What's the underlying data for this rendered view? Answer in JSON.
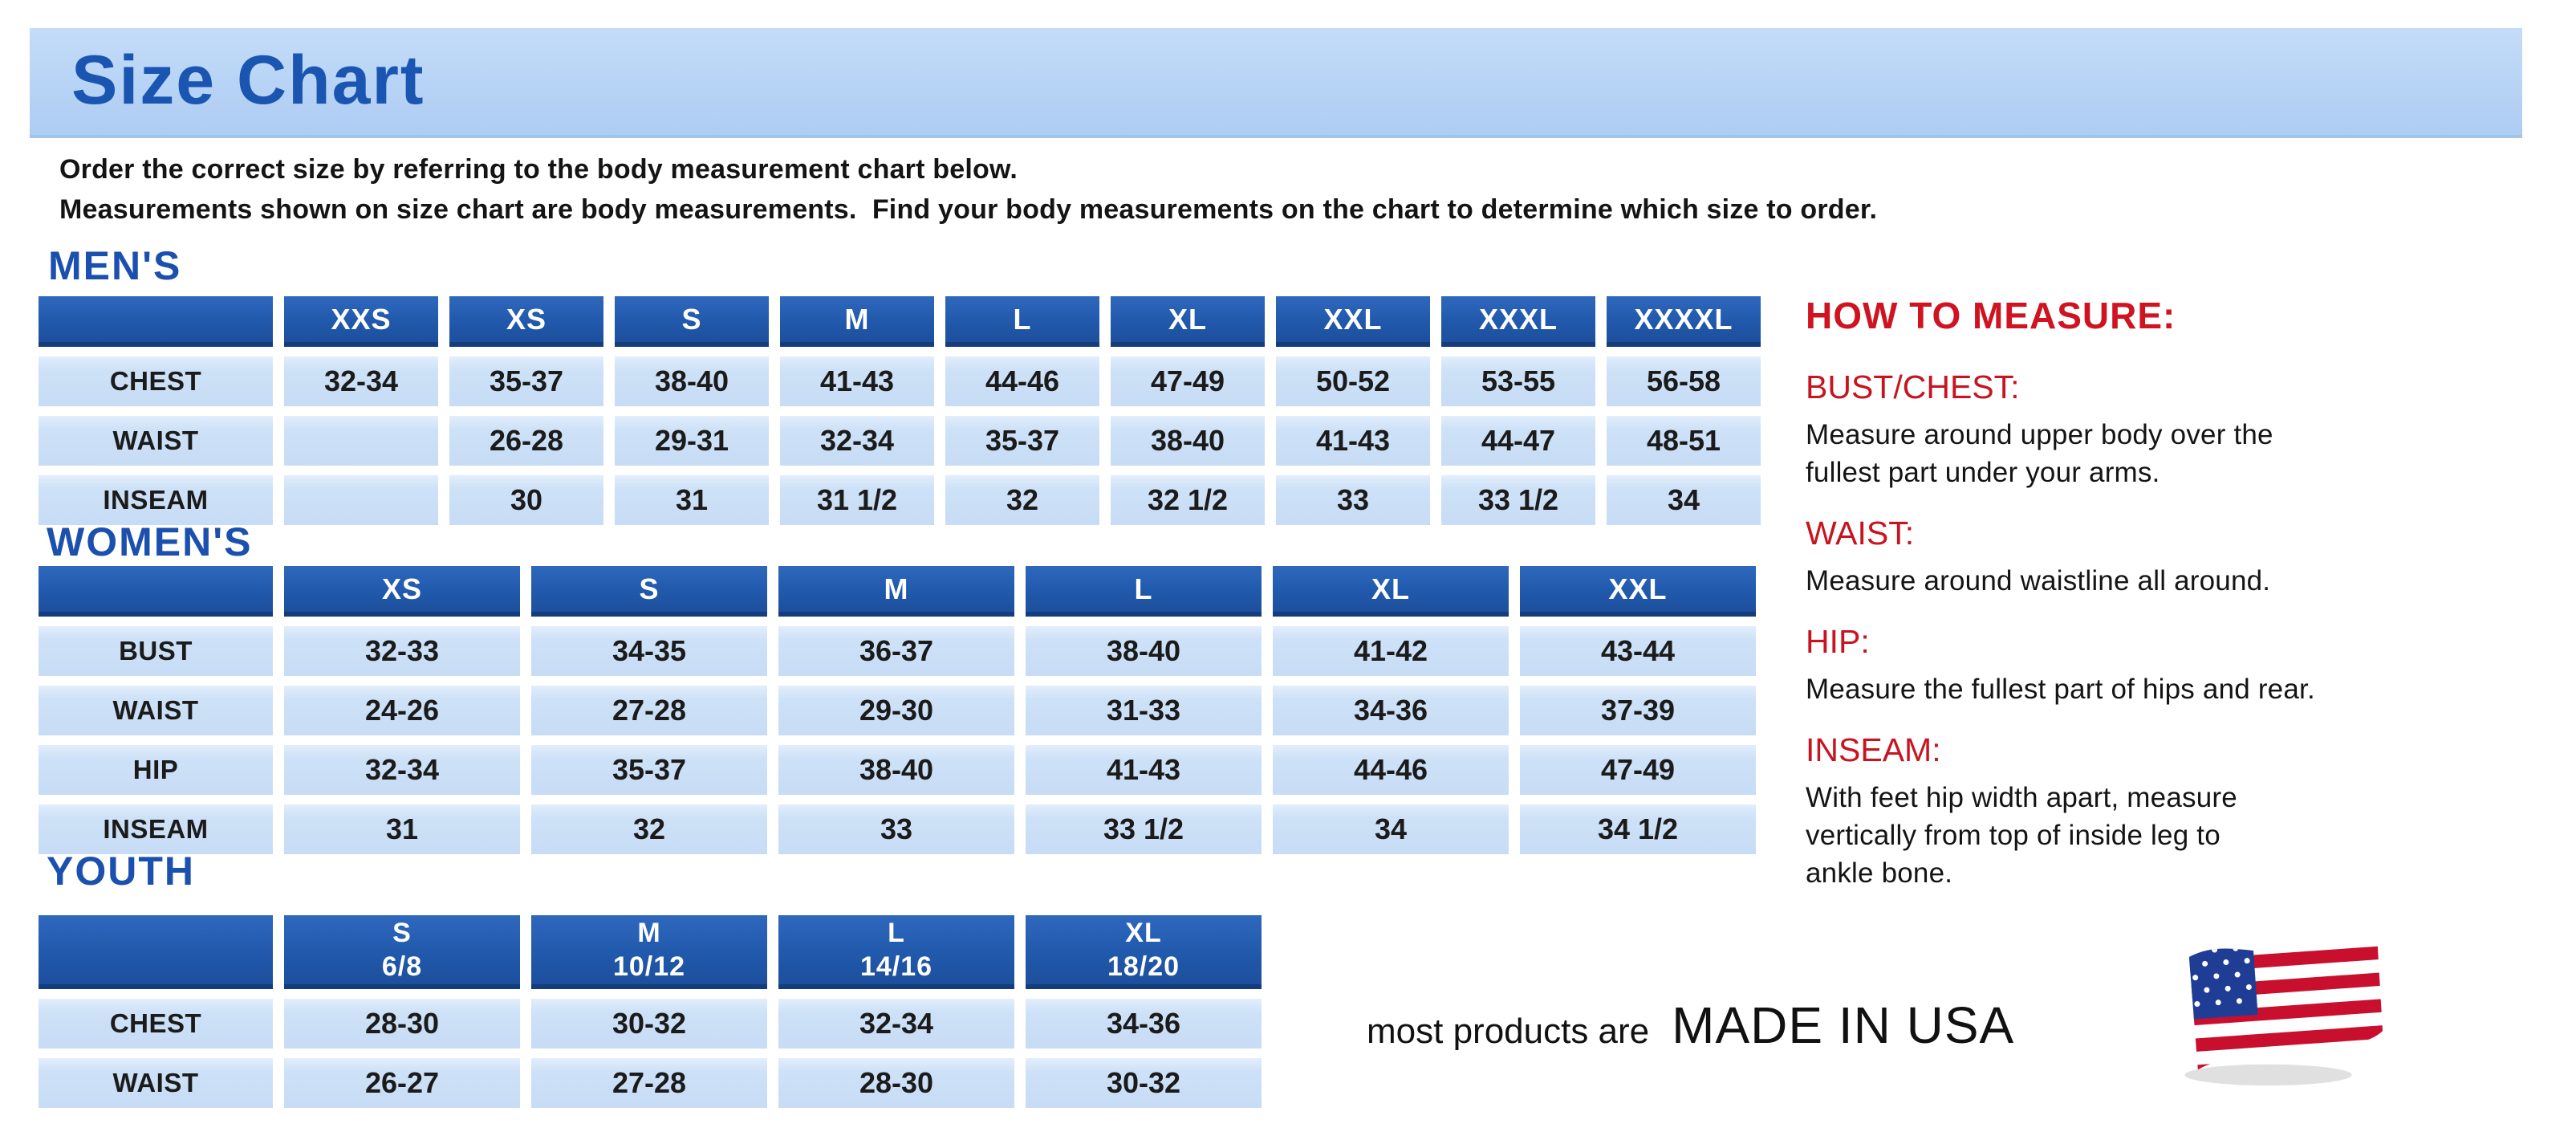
{
  "title": "Size Chart",
  "intro": {
    "line1": "Order the correct size by referring to the body measurement chart below.",
    "line2": "Measurements shown on size chart are body measurements.  Find your body measurements on the chart to determine which size to order."
  },
  "colors": {
    "banner_blue": "#b7d3f5",
    "heading_blue": "#1c50ae",
    "table_header_blue": "#2159ac",
    "table_cell_blue": "#c7dcf5",
    "accent_red": "#cf1320",
    "text_black": "#141414"
  },
  "tables": {
    "mens": {
      "heading": "MEN'S",
      "columns": [
        "XXS",
        "XS",
        "S",
        "M",
        "L",
        "XL",
        "XXL",
        "XXXL",
        "XXXXL"
      ],
      "rows": [
        {
          "label": "CHEST",
          "values": [
            "32-34",
            "35-37",
            "38-40",
            "41-43",
            "44-46",
            "47-49",
            "50-52",
            "53-55",
            "56-58"
          ]
        },
        {
          "label": "WAIST",
          "values": [
            "",
            "26-28",
            "29-31",
            "32-34",
            "35-37",
            "38-40",
            "41-43",
            "44-47",
            "48-51"
          ]
        },
        {
          "label": "INSEAM",
          "values": [
            "",
            "30",
            "31",
            "31 1/2",
            "32",
            "32 1/2",
            "33",
            "33 1/2",
            "34"
          ]
        }
      ]
    },
    "womens": {
      "heading": "WOMEN'S",
      "columns": [
        "XS",
        "S",
        "M",
        "L",
        "XL",
        "XXL"
      ],
      "rows": [
        {
          "label": "BUST",
          "values": [
            "32-33",
            "34-35",
            "36-37",
            "38-40",
            "41-42",
            "43-44"
          ]
        },
        {
          "label": "WAIST",
          "values": [
            "24-26",
            "27-28",
            "29-30",
            "31-33",
            "34-36",
            "37-39"
          ]
        },
        {
          "label": "HIP",
          "values": [
            "32-34",
            "35-37",
            "38-40",
            "41-43",
            "44-46",
            "47-49"
          ]
        },
        {
          "label": "INSEAM",
          "values": [
            "31",
            "32",
            "33",
            "33 1/2",
            "34",
            "34 1/2"
          ]
        }
      ]
    },
    "youth": {
      "heading": "YOUTH",
      "columns": [
        "S\n6/8",
        "M\n10/12",
        "L\n14/16",
        "XL\n18/20"
      ],
      "rows": [
        {
          "label": "CHEST",
          "values": [
            "28-30",
            "30-32",
            "32-34",
            "34-36"
          ]
        },
        {
          "label": "WAIST",
          "values": [
            "26-27",
            "27-28",
            "28-30",
            "30-32"
          ]
        }
      ]
    }
  },
  "how_to_measure": {
    "heading": "HOW TO MEASURE:",
    "items": [
      {
        "label": "BUST/CHEST:",
        "text": "Measure around upper body over the\nfullest part under your arms."
      },
      {
        "label": "WAIST:",
        "text": "Measure around waistline all around."
      },
      {
        "label": "HIP:",
        "text": "Measure the fullest part of hips and rear."
      },
      {
        "label": "INSEAM:",
        "text": "With feet hip width apart, measure\nvertically from top of inside leg to\nankle bone."
      }
    ]
  },
  "footer": {
    "prefix": "most products are",
    "made_in": "MADE IN USA",
    "flag_icon": "us-flag-icon"
  }
}
